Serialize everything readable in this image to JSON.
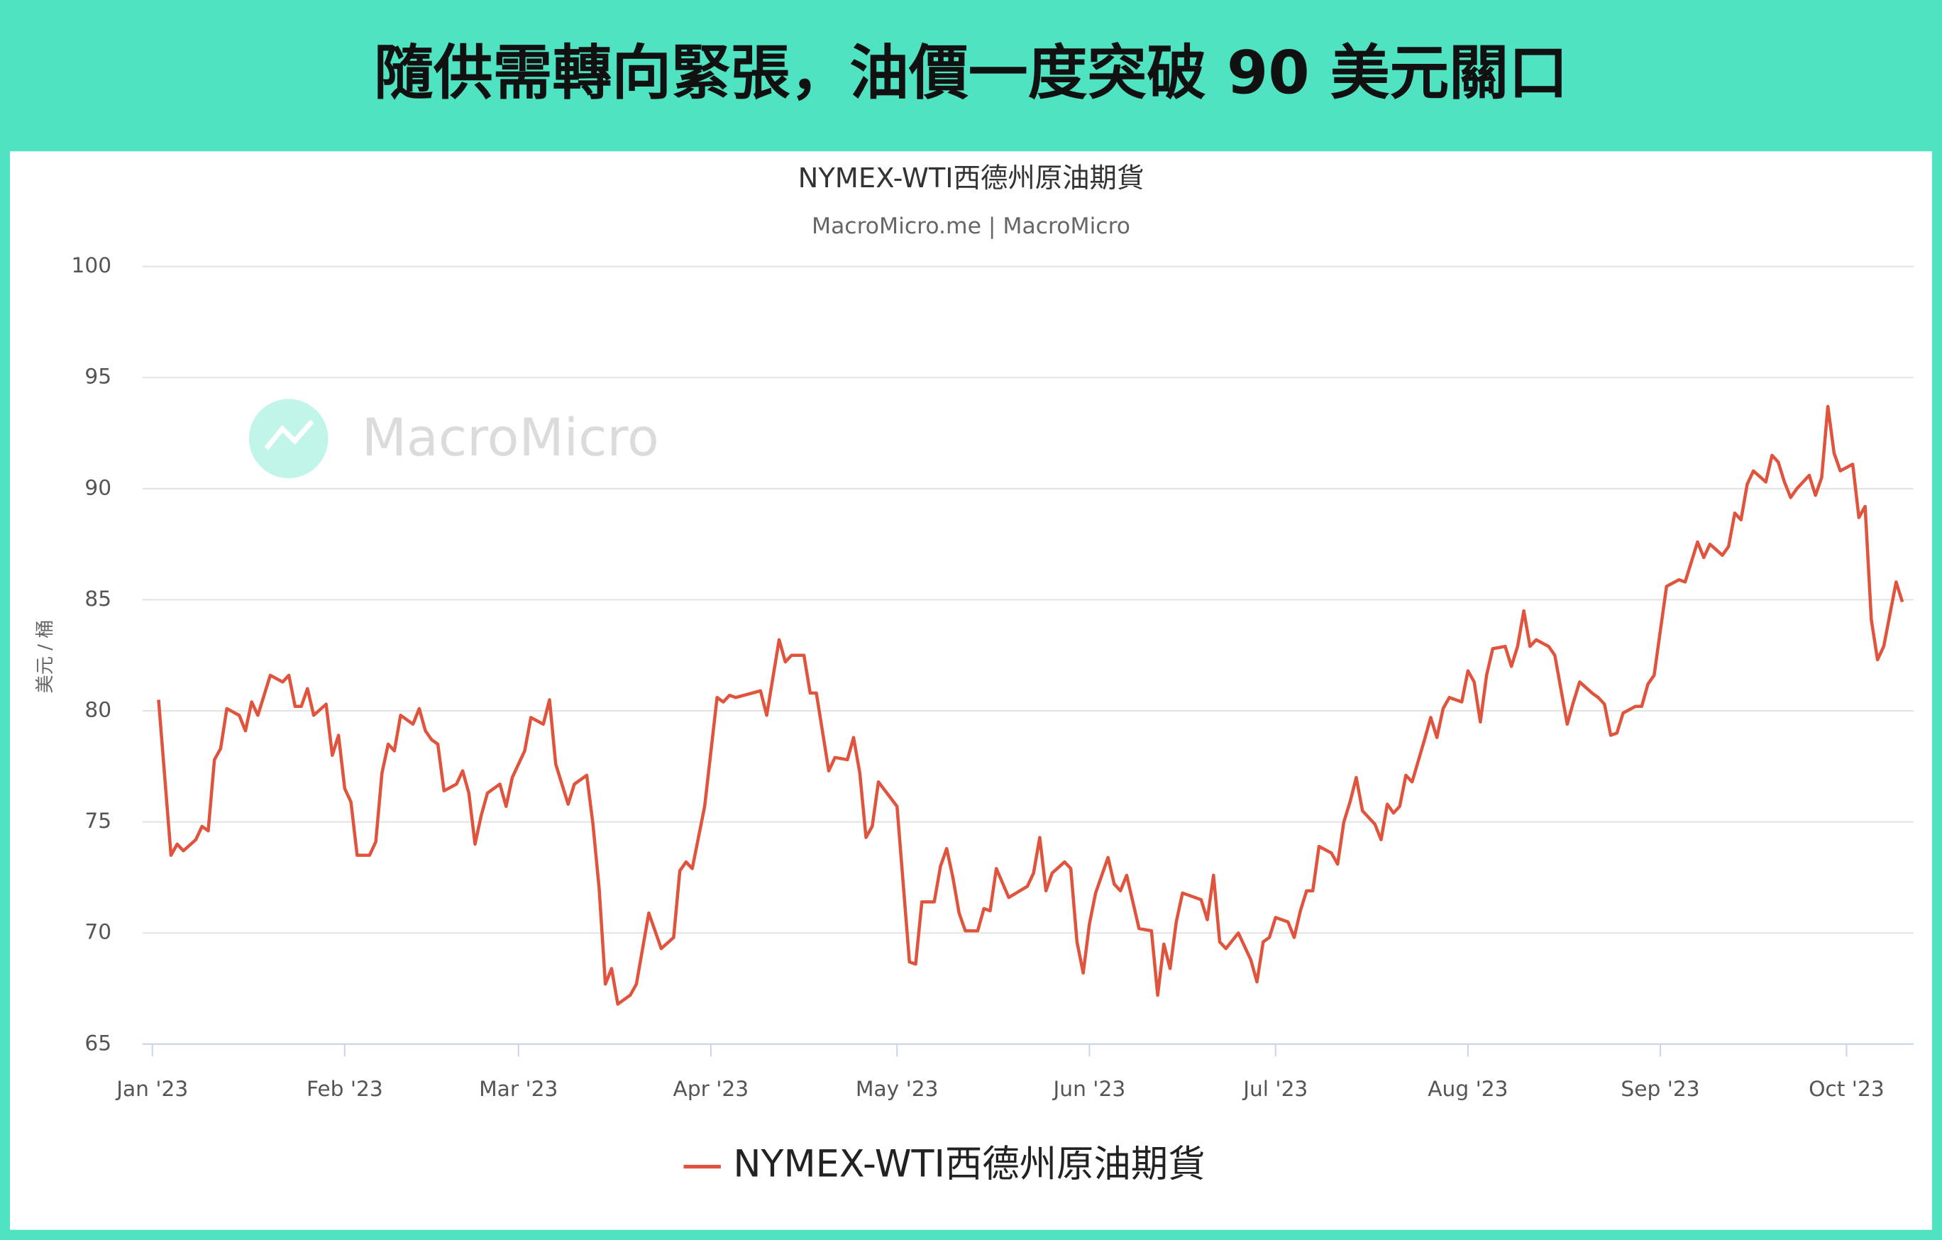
{
  "header": {
    "title": "隨供需轉向緊張，油價一度突破 90 美元關口"
  },
  "watermark": "MacroMicro",
  "chart_data": {
    "type": "line",
    "title": "NYMEX-WTI西德州原油期貨",
    "subtitle": "MacroMicro.me | MacroMicro",
    "y_label": "美元 / 桶",
    "xlim": [
      -1.6,
      283.8
    ],
    "xticks": [
      {
        "value": 0,
        "label": "Jan '23"
      },
      {
        "value": 31,
        "label": "Feb '23"
      },
      {
        "value": 59,
        "label": "Mar '23"
      },
      {
        "value": 90,
        "label": "Apr '23"
      },
      {
        "value": 120,
        "label": "May '23"
      },
      {
        "value": 151,
        "label": "Jun '23"
      },
      {
        "value": 181,
        "label": "Jul '23"
      },
      {
        "value": 212,
        "label": "Aug '23"
      },
      {
        "value": 243,
        "label": "Sep '23"
      },
      {
        "value": 273,
        "label": "Oct '23"
      }
    ],
    "ylim": [
      65,
      100
    ],
    "yticks": [
      65,
      70,
      75,
      80,
      85,
      90,
      95,
      100
    ],
    "grid": true,
    "legend": "bottom",
    "x": [
      1,
      3,
      4,
      5,
      7,
      8,
      9,
      10,
      11,
      12,
      14,
      15,
      16,
      17,
      19,
      21,
      22,
      23,
      24,
      25,
      26,
      28,
      29,
      30,
      31,
      32,
      33,
      35,
      36,
      37,
      38,
      39,
      40,
      42,
      43,
      44,
      45,
      46,
      47,
      49,
      50,
      51,
      52,
      53,
      54,
      56,
      57,
      58,
      60,
      61,
      63,
      64,
      65,
      67,
      68,
      70,
      71,
      72,
      73,
      74,
      75,
      77,
      78,
      80,
      82,
      84,
      85,
      86,
      87,
      89,
      91,
      92,
      93,
      94,
      98,
      99,
      101,
      102,
      103,
      105,
      106,
      107,
      109,
      110,
      112,
      113,
      114,
      115,
      116,
      117,
      120,
      122,
      123,
      124,
      126,
      127,
      128,
      129,
      130,
      131,
      133,
      134,
      135,
      136,
      138,
      141,
      142,
      143,
      144,
      145,
      147,
      148,
      149,
      150,
      151,
      152,
      154,
      155,
      156,
      157,
      159,
      161,
      162,
      163,
      164,
      165,
      166,
      169,
      170,
      171,
      172,
      173,
      175,
      177,
      178,
      179,
      180,
      181,
      183,
      184,
      185,
      186,
      187,
      188,
      190,
      191,
      192,
      193,
      194,
      195,
      197,
      198,
      199,
      200,
      201,
      202,
      203,
      205,
      206,
      207,
      208,
      209,
      211,
      212,
      213,
      214,
      215,
      216,
      218,
      219,
      220,
      221,
      222,
      223,
      225,
      226,
      228,
      229,
      230,
      232,
      233,
      234,
      235,
      236,
      237,
      239,
      240,
      241,
      242,
      244,
      246,
      247,
      248,
      249,
      250,
      251,
      253,
      254,
      255,
      256,
      257,
      258,
      260,
      261,
      262,
      263,
      264,
      265,
      267,
      268,
      269,
      270,
      271,
      272,
      274,
      275,
      276,
      277,
      278,
      279,
      281,
      282
    ],
    "series": [
      {
        "name": "NYMEX-WTI西德州原油期貨",
        "color": "#e0533c",
        "values": [
          80.5,
          73.5,
          74.0,
          73.7,
          74.2,
          74.8,
          74.6,
          77.8,
          78.3,
          80.1,
          79.8,
          79.1,
          80.4,
          79.8,
          81.6,
          81.3,
          81.6,
          80.2,
          80.2,
          81.0,
          79.8,
          80.3,
          78.0,
          78.9,
          76.5,
          75.9,
          73.5,
          73.5,
          74.1,
          77.2,
          78.5,
          78.2,
          79.8,
          79.4,
          80.1,
          79.1,
          78.7,
          78.5,
          76.4,
          76.7,
          77.3,
          76.3,
          74.0,
          75.3,
          76.3,
          76.7,
          75.7,
          77.0,
          78.2,
          79.7,
          79.4,
          80.5,
          77.6,
          75.8,
          76.7,
          77.1,
          74.9,
          72.0,
          67.7,
          68.4,
          66.8,
          67.2,
          67.7,
          70.9,
          69.3,
          69.8,
          72.8,
          73.2,
          72.9,
          75.7,
          80.6,
          80.4,
          80.7,
          80.6,
          80.9,
          79.8,
          83.2,
          82.2,
          82.5,
          82.5,
          80.8,
          80.8,
          77.3,
          77.9,
          77.8,
          78.8,
          77.2,
          74.3,
          74.8,
          76.8,
          75.7,
          68.7,
          68.6,
          71.4,
          71.4,
          73.0,
          73.8,
          72.5,
          70.9,
          70.1,
          70.1,
          71.1,
          71.0,
          72.9,
          71.6,
          72.1,
          72.7,
          74.3,
          71.9,
          72.7,
          73.2,
          72.9,
          69.6,
          68.2,
          70.4,
          71.8,
          73.4,
          72.2,
          71.9,
          72.6,
          70.2,
          70.1,
          67.2,
          69.5,
          68.4,
          70.5,
          71.8,
          71.5,
          70.6,
          72.6,
          69.6,
          69.3,
          70.0,
          68.8,
          67.8,
          69.6,
          69.8,
          70.7,
          70.5,
          69.8,
          71.0,
          71.9,
          71.9,
          73.9,
          73.6,
          73.1,
          75.0,
          75.9,
          77.0,
          75.5,
          74.9,
          74.2,
          75.8,
          75.4,
          75.7,
          77.1,
          76.8,
          78.7,
          79.7,
          78.8,
          80.1,
          80.6,
          80.4,
          81.8,
          81.3,
          79.5,
          81.6,
          82.8,
          82.9,
          82.0,
          82.9,
          84.5,
          82.9,
          83.2,
          82.9,
          82.5,
          79.4,
          80.4,
          81.3,
          80.8,
          80.6,
          80.3,
          78.9,
          79.0,
          79.9,
          80.2,
          80.2,
          81.2,
          81.6,
          85.6,
          85.9,
          85.8,
          86.7,
          87.6,
          86.9,
          87.5,
          87.0,
          87.4,
          88.9,
          88.6,
          90.2,
          90.8,
          90.3,
          91.5,
          91.2,
          90.3,
          89.6,
          90.0,
          90.6,
          89.7,
          90.5,
          93.7,
          91.6,
          90.8,
          91.1,
          88.7,
          89.2,
          84.1,
          82.3,
          82.9,
          85.8,
          84.9
        ]
      }
    ]
  }
}
